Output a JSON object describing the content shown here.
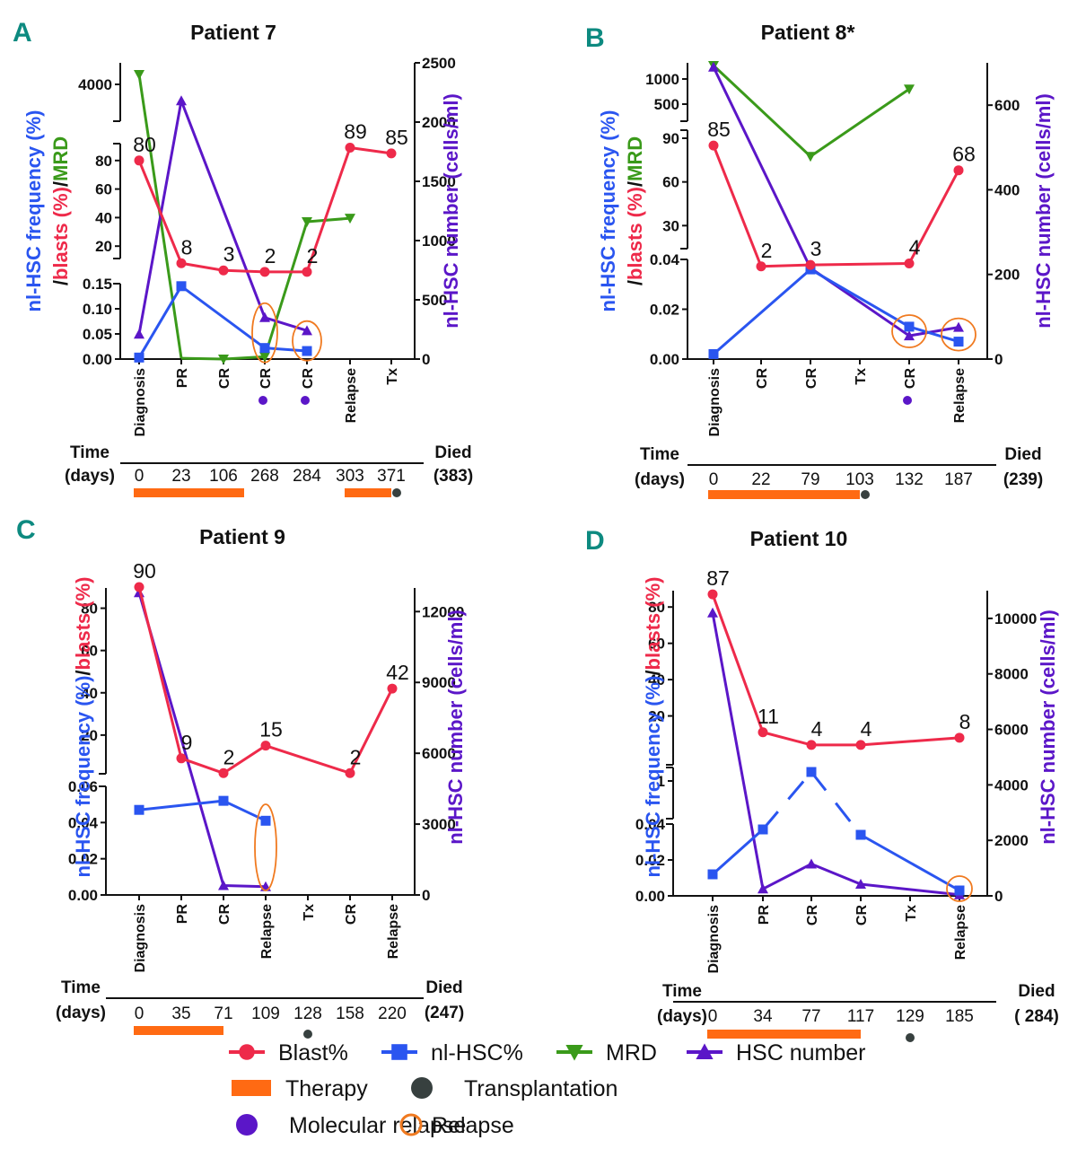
{
  "legend": {
    "items": [
      {
        "label": "Blast%",
        "marker": "circle",
        "color": "#ee2a4a"
      },
      {
        "label": "nl-HSC%",
        "marker": "square",
        "color": "#2a55f0"
      },
      {
        "label": "MRD",
        "marker": "triangle-down",
        "color": "#3a9a1a"
      },
      {
        "label": "HSC number",
        "marker": "triangle-up",
        "color": "#5b16c8"
      },
      {
        "label": "Therapy",
        "marker": "bar",
        "color": "#ff6a13"
      },
      {
        "label": "Transplantation",
        "marker": "dot",
        "color": "#37403f"
      },
      {
        "label": "Molecular relapse",
        "marker": "dot",
        "color": "#5b16c8"
      },
      {
        "label": "Relapse",
        "marker": "ring",
        "color": "#f07a20"
      }
    ]
  },
  "colors": {
    "blast": "#ee2a4a",
    "hsc_freq": "#2a55f0",
    "mrd": "#3a9a1a",
    "hsc_num": "#5b16c8",
    "therapy": "#ff6a13",
    "transplant": "#37403f",
    "relapse_ring": "#f07a20",
    "panel_letter": "#0d8a80"
  },
  "chart_data": [
    {
      "panel": "A",
      "type": "line",
      "title": "Patient 7",
      "ylabel_left_parts": [
        {
          "text": "nl-HSC frequency (%)",
          "color": "#2a55f0"
        },
        {
          "text": "/",
          "color": "#111"
        },
        {
          "text": "blasts (%)",
          "color": "#ee2a4a"
        },
        {
          "text": "/",
          "color": "#111"
        },
        {
          "text": "MRD",
          "color": "#3a9a1a"
        }
      ],
      "ylabel_right": "nl-HSC number (cells/ml)",
      "categories": [
        "Diagnosis",
        "PR",
        "CR",
        "CR",
        "CR",
        "Relapse",
        "Tx"
      ],
      "left_axis_ticks": {
        "hsc_freq": [
          "0.00",
          "0.05",
          "0.10",
          "0.15"
        ],
        "blast": [
          "20",
          "40",
          "60",
          "80"
        ],
        "mrd": [
          "4000"
        ]
      },
      "right_axis_ticks": [
        "0",
        "500",
        "1000",
        "1500",
        "2000",
        "2500"
      ],
      "right_ylim": [
        0,
        2500
      ],
      "series": [
        {
          "name": "Blast%",
          "values": [
            80,
            8,
            3,
            2,
            2,
            89,
            85
          ],
          "labels": [
            "80",
            "8",
            "3",
            "2",
            "2",
            "89",
            "85"
          ]
        },
        {
          "name": "nl-HSC%",
          "values": [
            0.003,
            0.145,
            null,
            0.022,
            0.016,
            null,
            null
          ]
        },
        {
          "name": "MRD",
          "values": [
            4500,
            12,
            0,
            34,
            2000,
            2050,
            null
          ]
        },
        {
          "name": "HSC number",
          "values": [
            210,
            2180,
            null,
            350,
            240,
            null,
            null
          ]
        }
      ],
      "molecular_relapse_at": [
        3,
        4
      ],
      "relapse_circles_at": [
        3,
        4
      ],
      "time_header": [
        "Time",
        "(days)"
      ],
      "time_days": [
        "0",
        "23",
        "106",
        "268",
        "284",
        "303",
        "371"
      ],
      "died": [
        "Died",
        "(383)"
      ],
      "therapy_bars": [
        [
          0,
          2.5
        ],
        [
          5,
          6
        ]
      ],
      "transplant_at": 6
    },
    {
      "panel": "B",
      "type": "line",
      "title": "Patient 8*",
      "ylabel_left_parts": [
        {
          "text": "nl-HSC frequency (%)",
          "color": "#2a55f0"
        },
        {
          "text": "/",
          "color": "#111"
        },
        {
          "text": "blasts (%)",
          "color": "#ee2a4a"
        },
        {
          "text": "/",
          "color": "#111"
        },
        {
          "text": "MRD",
          "color": "#3a9a1a"
        }
      ],
      "ylabel_right": "nl-HSC number (cells/ml)",
      "categories": [
        "Diagnosis",
        "CR",
        "CR",
        "Tx",
        "CR",
        "Relapse"
      ],
      "left_axis_ticks": {
        "hsc_freq": [
          "0.00",
          "0.02",
          "0.04"
        ],
        "blast": [
          "30",
          "60",
          "90"
        ],
        "mrd": [
          "500",
          "1000"
        ]
      },
      "right_axis_ticks": [
        "0",
        "200",
        "400",
        "600"
      ],
      "right_ylim": [
        0,
        700
      ],
      "series": [
        {
          "name": "Blast%",
          "values": [
            85,
            2,
            3,
            null,
            4,
            68
          ],
          "labels": [
            "85",
            "2",
            "3",
            "",
            "4",
            "68"
          ]
        },
        {
          "name": "nl-HSC%",
          "values": [
            0.002,
            null,
            0.036,
            null,
            0.013,
            0.007
          ]
        },
        {
          "name": "MRD",
          "values": [
            1300,
            null,
            45,
            null,
            800,
            null
          ]
        },
        {
          "name": "HSC number",
          "values": [
            690,
            null,
            215,
            null,
            55,
            75
          ]
        }
      ],
      "molecular_relapse_at": [
        4
      ],
      "relapse_circles_at": [
        4,
        5
      ],
      "time_header": [
        "Time",
        "(days)"
      ],
      "time_days": [
        "0",
        "22",
        "79",
        "103",
        "132",
        "187"
      ],
      "died": [
        "Died",
        "(239)"
      ],
      "therapy_bars": [
        [
          0,
          3
        ]
      ],
      "transplant_at": 3
    },
    {
      "panel": "C",
      "type": "line",
      "title": "Patient 9",
      "ylabel_left_parts": [
        {
          "text": "nl-HSC frequency (%)",
          "color": "#2a55f0"
        },
        {
          "text": "/",
          "color": "#111"
        },
        {
          "text": "blasts (%)",
          "color": "#ee2a4a"
        }
      ],
      "ylabel_right": "nl-HSC number (cells/ml)",
      "categories": [
        "Diagnosis",
        "PR",
        "CR",
        "Relapse",
        "Tx",
        "CR",
        "Relapse"
      ],
      "left_axis_ticks": {
        "hsc_freq": [
          "0.00",
          "0.02",
          "0.04",
          "0.06"
        ],
        "blast": [
          "20",
          "40",
          "60",
          "80"
        ]
      },
      "right_axis_ticks": [
        "0",
        "3000",
        "6000",
        "9000",
        "12000"
      ],
      "right_ylim": [
        0,
        13000
      ],
      "series": [
        {
          "name": "Blast%",
          "values": [
            90,
            9,
            2,
            15,
            null,
            2,
            42
          ],
          "labels": [
            "90",
            "9",
            "2",
            "15",
            "",
            "2",
            "42"
          ]
        },
        {
          "name": "nl-HSC%",
          "values": [
            0.047,
            null,
            0.052,
            0.041,
            null,
            null,
            null
          ]
        },
        {
          "name": "HSC number",
          "values": [
            12800,
            null,
            400,
            350,
            null,
            null,
            null
          ]
        }
      ],
      "molecular_relapse_at": [],
      "relapse_circles_at": [
        3
      ],
      "time_header": [
        "Time",
        "(days)"
      ],
      "time_days": [
        "0",
        "35",
        "71",
        "109",
        "128",
        "158",
        "220"
      ],
      "died": [
        "Died",
        "(247)"
      ],
      "therapy_bars": [
        [
          0,
          2
        ]
      ],
      "transplant_at": 4
    },
    {
      "panel": "D",
      "type": "line",
      "title": "Patient 10",
      "ylabel_left_parts": [
        {
          "text": "nl-HSC frequency (%)",
          "color": "#2a55f0"
        },
        {
          "text": "/",
          "color": "#111"
        },
        {
          "text": "blasts (%)",
          "color": "#ee2a4a"
        }
      ],
      "ylabel_right": "nl-HSC number (cells/ml)",
      "categories": [
        "Diagnosis",
        "PR",
        "CR",
        "CR",
        "Tx",
        "Relapse"
      ],
      "left_axis_ticks": {
        "hsc_freq": [
          "0.00",
          "0.02",
          "0.04"
        ],
        "hsc_freq_high": [
          "1"
        ],
        "blast": [
          "20",
          "40",
          "60",
          "80"
        ]
      },
      "right_axis_ticks": [
        "0",
        "2000",
        "4000",
        "6000",
        "8000",
        "10000"
      ],
      "right_ylim": [
        0,
        11000
      ],
      "series": [
        {
          "name": "Blast%",
          "values": [
            87,
            11,
            4,
            4,
            null,
            8
          ],
          "labels": [
            "87",
            "11",
            "4",
            "4",
            "",
            "8"
          ]
        },
        {
          "name": "nl-HSC%",
          "values": [
            0.012,
            0.037,
            1.1,
            0.034,
            null,
            0.003
          ]
        },
        {
          "name": "HSC number",
          "values": [
            10200,
            250,
            1150,
            420,
            null,
            40
          ]
        }
      ],
      "molecular_relapse_at": [],
      "relapse_circles_at": [
        5
      ],
      "time_header": [
        "Time",
        "(days)"
      ],
      "time_days": [
        "0",
        "34",
        "77",
        "117",
        "129",
        "185"
      ],
      "died": [
        "Died",
        "( 284)"
      ],
      "therapy_bars": [
        [
          0,
          3
        ]
      ],
      "transplant_at": 4
    }
  ]
}
